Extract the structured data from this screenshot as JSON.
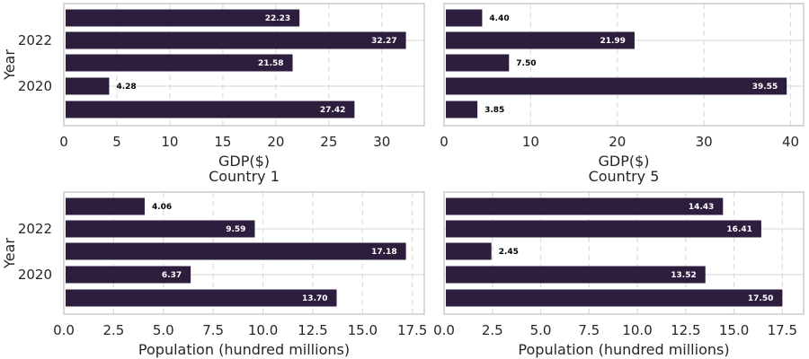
{
  "chart_data": [
    {
      "type": "bar",
      "orientation": "horizontal",
      "title": "",
      "xlabel": "GDP($)",
      "ylabel": "Year",
      "y_ticks": [
        "2022",
        "2020"
      ],
      "x_ticks": [
        "0",
        "5",
        "10",
        "15",
        "20",
        "25",
        "30"
      ],
      "xlim": [
        0,
        34
      ],
      "values_top_to_bottom": [
        22.23,
        32.27,
        21.58,
        4.28,
        27.42
      ],
      "value_labels": [
        "22.23",
        "32.27",
        "21.58",
        "4.28",
        "27.42"
      ],
      "grid": true
    },
    {
      "type": "bar",
      "orientation": "horizontal",
      "title": "",
      "xlabel": "GDP($)",
      "ylabel": "",
      "y_ticks": [],
      "x_ticks": [
        "0",
        "10",
        "20",
        "30",
        "40"
      ],
      "xlim": [
        0,
        41.5
      ],
      "values_top_to_bottom": [
        4.4,
        21.99,
        7.5,
        39.55,
        3.85
      ],
      "value_labels": [
        "4.40",
        "21.99",
        "7.50",
        "39.55",
        "3.85"
      ],
      "grid": true
    },
    {
      "type": "bar",
      "orientation": "horizontal",
      "title": "Country 1",
      "xlabel": "Population (hundred millions)",
      "ylabel": "Year",
      "y_ticks": [
        "2022",
        "2020"
      ],
      "x_ticks": [
        "0.0",
        "2.5",
        "5.0",
        "7.5",
        "10.0",
        "12.5",
        "15.0",
        "17.5"
      ],
      "xlim": [
        0,
        18.1
      ],
      "values_top_to_bottom": [
        4.06,
        9.59,
        17.18,
        6.37,
        13.7
      ],
      "value_labels": [
        "4.06",
        "9.59",
        "17.18",
        "6.37",
        "13.70"
      ],
      "grid": true
    },
    {
      "type": "bar",
      "orientation": "horizontal",
      "title": "Country 5",
      "xlabel": "Population (hundred millions)",
      "ylabel": "",
      "y_ticks": [],
      "x_ticks": [
        "0.0",
        "2.5",
        "5.0",
        "7.5",
        "10.0",
        "12.5",
        "15.0",
        "17.5"
      ],
      "xlim": [
        0,
        18.6
      ],
      "values_top_to_bottom": [
        14.43,
        16.41,
        2.45,
        13.52,
        17.5
      ],
      "value_labels": [
        "14.43",
        "16.41",
        "2.45",
        "13.52",
        "17.50"
      ],
      "grid": true
    }
  ],
  "colors": {
    "bar": "#2d1e3e",
    "label_inside": "#ffffff",
    "label_outside": "#000000",
    "grid": "#dddddd",
    "frame": "#cccccc"
  }
}
